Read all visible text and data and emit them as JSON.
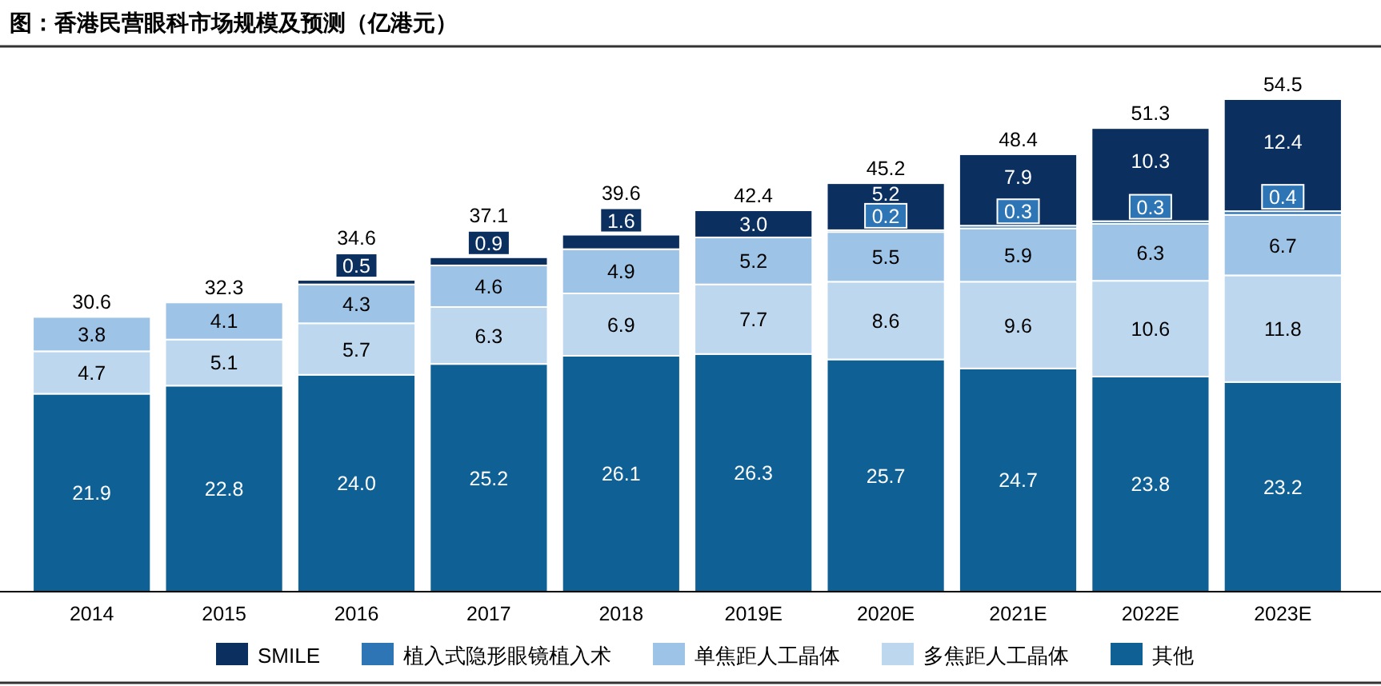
{
  "chart_data": {
    "type": "bar",
    "title": "图：香港民营眼科市场规模及预测（亿港元）",
    "categories": [
      "2014",
      "2015",
      "2016",
      "2017",
      "2018",
      "2019E",
      "2020E",
      "2021E",
      "2022E",
      "2023E"
    ],
    "stacked": true,
    "legend": "bottom",
    "grid": false,
    "series": [
      {
        "name": "其他",
        "color": "#0f6195",
        "values": [
          21.9,
          22.8,
          24.0,
          25.2,
          26.1,
          26.3,
          25.7,
          24.7,
          23.8,
          23.2
        ],
        "value_labels": [
          "21.9",
          "22.8",
          "24.0",
          "25.2",
          "26.1",
          "26.3",
          "25.7",
          "24.7",
          "23.8",
          "23.2"
        ]
      },
      {
        "name": "多焦距人工晶体",
        "color": "#bdd7ee",
        "values": [
          4.7,
          5.1,
          5.7,
          6.3,
          6.9,
          7.7,
          8.6,
          9.6,
          10.6,
          11.8
        ],
        "value_labels": [
          "4.7",
          "5.1",
          "5.7",
          "6.3",
          "6.9",
          "7.7",
          "8.6",
          "9.6",
          "10.6",
          "11.8"
        ]
      },
      {
        "name": "单焦距人工晶体",
        "color": "#9dc3e6",
        "values": [
          3.8,
          4.1,
          4.3,
          4.6,
          4.9,
          5.2,
          5.5,
          5.9,
          6.3,
          6.7
        ],
        "value_labels": [
          "3.8",
          "4.1",
          "4.3",
          "4.6",
          "4.9",
          "5.2",
          "5.5",
          "5.9",
          "6.3",
          "6.7"
        ]
      },
      {
        "name": "植入式隐形眼镜植入术",
        "color": "#2e75b6",
        "values": [
          null,
          null,
          null,
          null,
          null,
          null,
          0.2,
          0.3,
          0.3,
          0.4
        ],
        "value_labels": [
          null,
          null,
          null,
          null,
          null,
          null,
          "0.2",
          "0.3",
          "0.3",
          "0.4"
        ]
      },
      {
        "name": "SMILE",
        "color": "#0b2f5e",
        "values": [
          null,
          null,
          0.5,
          0.9,
          1.6,
          3.0,
          5.2,
          7.9,
          10.3,
          12.4
        ],
        "value_labels": [
          null,
          null,
          "0.5",
          "0.9",
          "1.6",
          "3.0",
          "5.2",
          "7.9",
          "10.3",
          "12.4"
        ]
      }
    ],
    "totals": [
      "30.6",
      "32.3",
      "34.6",
      "37.1",
      "39.6",
      "42.4",
      "45.2",
      "48.4",
      "51.3",
      "54.5"
    ]
  }
}
